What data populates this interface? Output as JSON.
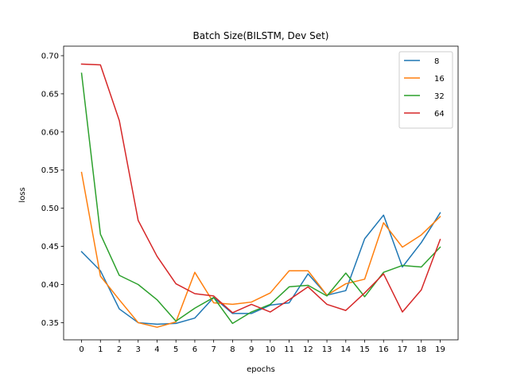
{
  "chart_data": {
    "type": "line",
    "title": "Batch Size(BILSTM, Dev Set)",
    "xlabel": "epochs",
    "ylabel": "loss",
    "x": [
      0,
      1,
      2,
      3,
      4,
      5,
      6,
      7,
      8,
      9,
      10,
      11,
      12,
      13,
      14,
      15,
      16,
      17,
      18,
      19
    ],
    "xticks": [
      "0",
      "1",
      "2",
      "3",
      "4",
      "5",
      "6",
      "7",
      "8",
      "9",
      "10",
      "11",
      "12",
      "13",
      "14",
      "15",
      "16",
      "17",
      "18",
      "19"
    ],
    "yticks": [
      "0.35",
      "0.40",
      "0.45",
      "0.50",
      "0.55",
      "0.60",
      "0.65",
      "0.70"
    ],
    "ytick_values": [
      0.35,
      0.4,
      0.45,
      0.5,
      0.55,
      0.6,
      0.65,
      0.7
    ],
    "xlim": [
      -0.95,
      19.95
    ],
    "ylim": [
      0.3275,
      0.7125
    ],
    "grid": false,
    "legend_position": "top-right",
    "series": [
      {
        "name": "8",
        "color": "#1f77b4",
        "values": [
          0.443,
          0.418,
          0.368,
          0.35,
          0.348,
          0.349,
          0.356,
          0.383,
          0.362,
          0.362,
          0.373,
          0.376,
          0.414,
          0.386,
          0.392,
          0.46,
          0.491,
          0.423,
          0.455,
          0.494
        ]
      },
      {
        "name": "16",
        "color": "#ff7f0e",
        "values": [
          0.547,
          0.411,
          0.38,
          0.35,
          0.344,
          0.351,
          0.416,
          0.376,
          0.374,
          0.377,
          0.389,
          0.418,
          0.418,
          0.386,
          0.401,
          0.407,
          0.481,
          0.449,
          0.465,
          0.489
        ]
      },
      {
        "name": "32",
        "color": "#2ca02c",
        "values": [
          0.677,
          0.466,
          0.412,
          0.4,
          0.38,
          0.352,
          0.369,
          0.383,
          0.349,
          0.364,
          0.374,
          0.397,
          0.399,
          0.385,
          0.415,
          0.384,
          0.416,
          0.425,
          0.423,
          0.449
        ]
      },
      {
        "name": "64",
        "color": "#d62728",
        "values": [
          0.689,
          0.688,
          0.615,
          0.484,
          0.437,
          0.401,
          0.388,
          0.385,
          0.363,
          0.374,
          0.364,
          0.38,
          0.397,
          0.374,
          0.366,
          0.389,
          0.414,
          0.364,
          0.393,
          0.459
        ]
      }
    ]
  }
}
